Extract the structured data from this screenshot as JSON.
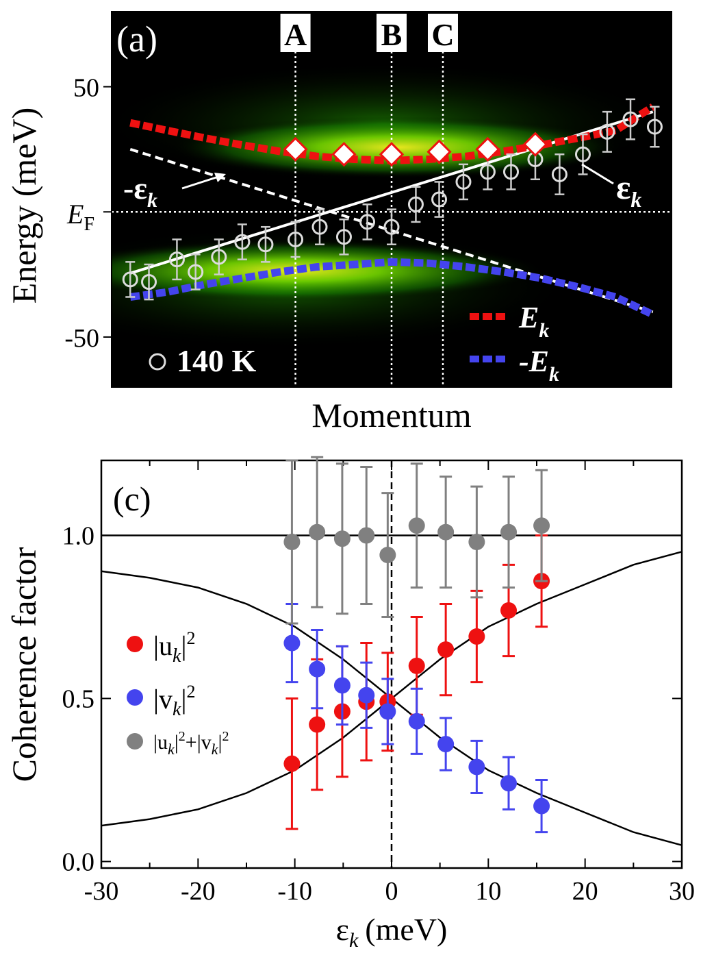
{
  "panel_a": {
    "label": "(a)",
    "ylabel": "Energy (meV)",
    "xlabel": "Momentum",
    "ef_label_main": "E",
    "ef_label_sub": "F",
    "neg_eps_label": "-ε",
    "eps_label": "ε",
    "k_sub": "k",
    "legend_ek": "E",
    "legend_neg_ek": "-E",
    "temperature_label": "140 K",
    "markers": [
      "A",
      "B",
      "C"
    ]
  },
  "panel_c": {
    "label": "(c)",
    "ylabel": "Coherence factor",
    "xlabel_main": "ε",
    "xlabel_sub": "k",
    "xlabel_unit": "(meV)",
    "legend_u": "|u",
    "legend_v": "|v",
    "legend_sum_a": "|u",
    "legend_sum_b": "|",
    "legend_sum_c": "+|v",
    "legend_sum_d": "|",
    "legend_k": "k",
    "legend_pow": "2"
  },
  "colors": {
    "red": "#ee1111",
    "blue": "#4444ee",
    "gray": "#808080",
    "black": "#000000",
    "white": "#ffffff",
    "green": "#2ed400",
    "yellow": "#f4f020"
  },
  "chart_data": [
    {
      "type": "scatter",
      "title": "(a)",
      "xlabel": "Momentum",
      "ylabel": "Energy (meV)",
      "xlim": [
        -30,
        30
      ],
      "ylim": [
        -70,
        80
      ],
      "yticks": [
        -50,
        0,
        50
      ],
      "ytick_labels": [
        "-50",
        "E_F",
        "50"
      ],
      "markers_x": [
        -10.3,
        0,
        5.5
      ],
      "marker_labels": [
        "A",
        "B",
        "C"
      ],
      "series": [
        {
          "name": "140 K (εk data)",
          "x": [
            -28,
            -26,
            -23,
            -21,
            -18.5,
            -16,
            -13.5,
            -10.3,
            -7.7,
            -5.1,
            -2.6,
            0,
            2.6,
            5.1,
            7.7,
            10.3,
            12.8,
            15.4,
            18,
            20.5,
            23.1,
            25.6,
            28.2
          ],
          "y": [
            -27,
            -28,
            -19,
            -24,
            -18,
            -12,
            -13,
            -11,
            -6,
            -10,
            -4,
            -6,
            3,
            5,
            12,
            16,
            16,
            21,
            15,
            23,
            32,
            37,
            34
          ],
          "err": [
            7,
            7,
            8,
            7,
            7,
            7,
            7,
            7,
            7,
            7,
            7,
            7,
            7,
            7,
            7,
            7,
            7,
            8,
            8,
            8,
            8,
            8,
            8
          ]
        },
        {
          "name": "Ek peaks",
          "x": [
            -10.3,
            -5.1,
            0,
            5.1,
            10.3,
            15.4
          ],
          "y": [
            25,
            23,
            23,
            24,
            25,
            27
          ]
        },
        {
          "name": "E_k",
          "x": [
            -28,
            -24,
            -20,
            -16,
            -12,
            -8,
            -4,
            0,
            4,
            8,
            12,
            16,
            20,
            24,
            28
          ],
          "y": [
            35.6,
            32.5,
            29.5,
            26.7,
            24.2,
            22.2,
            21,
            20.5,
            21,
            22.2,
            24.2,
            26.7,
            29.5,
            32.5,
            42
          ]
        },
        {
          "name": "-E_k",
          "x": [
            -28,
            -24,
            -20,
            -16,
            -12,
            -8,
            -4,
            0,
            4,
            8,
            12,
            16,
            20,
            24,
            28
          ],
          "y": [
            -34,
            -32,
            -29,
            -26.5,
            -24,
            -22,
            -21,
            -20,
            -20.5,
            -22,
            -24,
            -26.5,
            -30,
            -34,
            -41
          ]
        },
        {
          "name": "ε_k",
          "x": [
            -28,
            28
          ],
          "y": [
            -24.5,
            40
          ]
        },
        {
          "name": "-ε_k",
          "x": [
            -28,
            28
          ],
          "y": [
            25,
            -40
          ]
        }
      ],
      "legend": [
        "E_k",
        "-E_k",
        "140 K"
      ]
    },
    {
      "type": "scatter",
      "title": "(c)",
      "xlabel": "ε_k (meV)",
      "ylabel": "Coherence factor",
      "xlim": [
        -30,
        30
      ],
      "ylim": [
        -0.02,
        1.23
      ],
      "xticks": [
        -30,
        -20,
        -10,
        0,
        10,
        20,
        30
      ],
      "yticks": [
        0.0,
        0.5,
        1.0
      ],
      "ytick_labels": [
        "0.0",
        "0.5",
        "1.0"
      ],
      "series": [
        {
          "name": "|u_k|^2",
          "x": [
            -10.3,
            -7.7,
            -5.1,
            -2.6,
            -0.4,
            2.6,
            5.6,
            8.8,
            12.1,
            15.5
          ],
          "y": [
            0.3,
            0.42,
            0.46,
            0.49,
            0.49,
            0.6,
            0.65,
            0.69,
            0.77,
            0.86
          ],
          "err": [
            0.2,
            0.2,
            0.2,
            0.18,
            0.15,
            0.15,
            0.14,
            0.14,
            0.14,
            0.14
          ]
        },
        {
          "name": "|v_k|^2",
          "x": [
            -10.3,
            -7.7,
            -5.1,
            -2.6,
            -0.4,
            2.6,
            5.6,
            8.8,
            12.1,
            15.5
          ],
          "y": [
            0.67,
            0.59,
            0.54,
            0.51,
            0.46,
            0.43,
            0.36,
            0.29,
            0.24,
            0.17
          ],
          "err": [
            0.12,
            0.12,
            0.12,
            0.1,
            0.1,
            0.1,
            0.08,
            0.08,
            0.08,
            0.08
          ]
        },
        {
          "name": "|u_k|^2+|v_k|^2",
          "x": [
            -10.3,
            -7.7,
            -5.1,
            -2.6,
            -0.4,
            2.6,
            5.6,
            8.8,
            12.1,
            15.5
          ],
          "y": [
            0.98,
            1.01,
            0.99,
            1.0,
            0.94,
            1.03,
            1.01,
            0.98,
            1.01,
            1.03
          ],
          "err": [
            0.25,
            0.23,
            0.23,
            0.21,
            0.19,
            0.19,
            0.17,
            0.17,
            0.17,
            0.17
          ]
        },
        {
          "name": "BCS |u_k|^2 (fit)",
          "x": [
            -30,
            -25,
            -20,
            -15,
            -10,
            -5,
            0,
            5,
            10,
            15,
            20,
            25,
            30
          ],
          "y": [
            0.11,
            0.13,
            0.16,
            0.21,
            0.28,
            0.38,
            0.5,
            0.62,
            0.72,
            0.79,
            0.85,
            0.91,
            0.95
          ]
        },
        {
          "name": "BCS |v_k|^2 (fit)",
          "x": [
            -30,
            -25,
            -20,
            -15,
            -10,
            -5,
            0,
            5,
            10,
            15,
            20,
            25,
            30
          ],
          "y": [
            0.89,
            0.87,
            0.84,
            0.79,
            0.72,
            0.62,
            0.5,
            0.38,
            0.28,
            0.21,
            0.15,
            0.09,
            0.05
          ]
        }
      ],
      "reference_lines": {
        "y": 1.0,
        "x_dashed": 0
      }
    }
  ]
}
